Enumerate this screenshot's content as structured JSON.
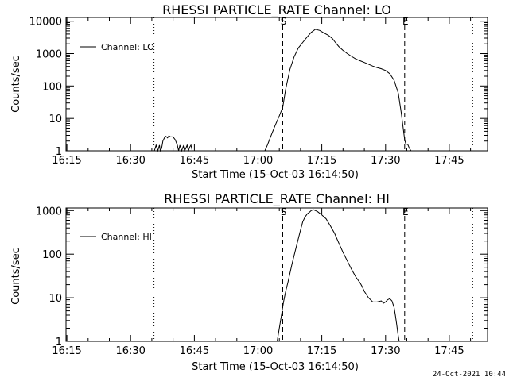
{
  "footer": {
    "timestamp": "24-Oct-2021 10:44"
  },
  "chart_data": [
    {
      "type": "line",
      "title": "RHESSI PARTICLE_RATE Channel: LO",
      "xlabel": "Start Time (15-Oct-03 16:14:50)",
      "ylabel": "Counts/sec",
      "yscale": "log",
      "ylim": [
        1,
        13000
      ],
      "xlim_min": [
        -0.2,
        99
      ],
      "x_tick_values": [
        0,
        15,
        30,
        45,
        60,
        75,
        90
      ],
      "x_tick_labels": [
        "16:15",
        "16:30",
        "16:45",
        "17:00",
        "17:15",
        "17:30",
        "17:45"
      ],
      "y_ticks": [
        {
          "value": 1,
          "label": "1"
        },
        {
          "value": 10,
          "label": "10"
        },
        {
          "value": 100,
          "label": "100"
        },
        {
          "value": 1000,
          "label": "1000"
        },
        {
          "value": 10000,
          "label": "10000"
        }
      ],
      "legend": "Channel: LO",
      "legend_position": "top-left",
      "vlines": [
        {
          "x": 20.5,
          "style": "dotted",
          "label": ""
        },
        {
          "x": 50.8,
          "style": "dashed",
          "label": "S"
        },
        {
          "x": 79.5,
          "style": "dashed",
          "label": "E"
        },
        {
          "x": 95.5,
          "style": "dotted",
          "label": ""
        }
      ],
      "series": [
        {
          "name": "Channel: LO",
          "x": [
            20.6,
            21.0,
            21.4,
            21.8,
            22.0,
            22.3,
            22.6,
            23.0,
            23.3,
            23.7,
            24.0,
            24.4,
            25.0,
            25.5,
            26.0,
            26.3,
            26.6,
            27.0,
            27.4,
            27.7,
            28.0,
            28.3,
            28.6,
            28.9,
            29.2,
            29.5
          ],
          "y": [
            1,
            1.5,
            1,
            1.5,
            1,
            1.2,
            2,
            2.6,
            2.8,
            2.5,
            2.9,
            2.7,
            2.7,
            2.2,
            1.5,
            1,
            1.5,
            1,
            1.4,
            1,
            1.2,
            1.5,
            1,
            1.3,
            1.5,
            1
          ]
        },
        {
          "name": "Channel: LO",
          "x": [
            46.6,
            47.2,
            48.0,
            49.0,
            50.0,
            50.8,
            51.5,
            52.5,
            53.5,
            54.5,
            55.5,
            56.5,
            57.5,
            58.5,
            59.5,
            60.5,
            61.5,
            62.5,
            63.2,
            64.0,
            65.0,
            66.0,
            67.0,
            68.0,
            69.0,
            70.0,
            71.0,
            72.0,
            73.0,
            74.0,
            75.0,
            76.0,
            77.0,
            78.0,
            78.7,
            79.2,
            79.5,
            79.8,
            80.2,
            80.6,
            81.0
          ],
          "y": [
            1,
            1.5,
            2.8,
            6,
            12,
            22,
            80,
            330,
            800,
            1500,
            2200,
            3200,
            4500,
            5600,
            5200,
            4300,
            3700,
            2900,
            2200,
            1650,
            1250,
            1000,
            820,
            680,
            600,
            530,
            470,
            410,
            370,
            340,
            300,
            240,
            150,
            60,
            15,
            4.5,
            2.2,
            1.6,
            1.6,
            1.2,
            1
          ]
        }
      ]
    },
    {
      "type": "line",
      "title": "RHESSI PARTICLE_RATE Channel: HI",
      "xlabel": "Start Time (15-Oct-03 16:14:50)",
      "ylabel": "Counts/sec",
      "yscale": "log",
      "ylim": [
        1,
        1150
      ],
      "xlim_min": [
        -0.2,
        99
      ],
      "x_tick_values": [
        0,
        15,
        30,
        45,
        60,
        75,
        90
      ],
      "x_tick_labels": [
        "16:15",
        "16:30",
        "16:45",
        "17:00",
        "17:15",
        "17:30",
        "17:45"
      ],
      "y_ticks": [
        {
          "value": 1,
          "label": "1"
        },
        {
          "value": 10,
          "label": "10"
        },
        {
          "value": 100,
          "label": "100"
        },
        {
          "value": 1000,
          "label": "1000"
        }
      ],
      "legend": "Channel: HI",
      "legend_position": "top-left",
      "vlines": [
        {
          "x": 20.5,
          "style": "dotted",
          "label": ""
        },
        {
          "x": 50.8,
          "style": "dashed",
          "label": "S"
        },
        {
          "x": 79.5,
          "style": "dashed",
          "label": "E"
        },
        {
          "x": 95.5,
          "style": "dotted",
          "label": ""
        }
      ],
      "series": [
        {
          "name": "Channel: HI",
          "x": [
            49.5,
            50.0,
            50.5,
            51.0,
            51.5,
            52.0,
            53.0,
            54.0,
            55.0,
            55.5,
            56.0,
            56.6,
            57.0,
            57.5,
            58.0,
            58.5,
            59.0,
            60.0,
            61.0,
            62.0,
            63.0,
            64.0,
            65.0,
            66.0,
            67.0,
            68.0,
            69.0,
            69.5,
            70.0,
            71.0,
            72.0,
            73.0,
            74.0,
            74.5,
            75.0,
            75.5,
            76.0,
            76.5,
            77.0,
            77.3,
            77.6,
            77.9,
            78.2
          ],
          "y": [
            1,
            2,
            4,
            8,
            14,
            22,
            60,
            150,
            360,
            550,
            700,
            850,
            900,
            1000,
            1050,
            1000,
            950,
            800,
            650,
            450,
            300,
            180,
            110,
            70,
            45,
            30,
            22,
            18,
            14,
            10,
            8,
            8,
            8.5,
            7.5,
            8,
            9,
            9.5,
            8.5,
            6,
            4,
            2.5,
            1.5,
            1
          ]
        }
      ]
    }
  ]
}
